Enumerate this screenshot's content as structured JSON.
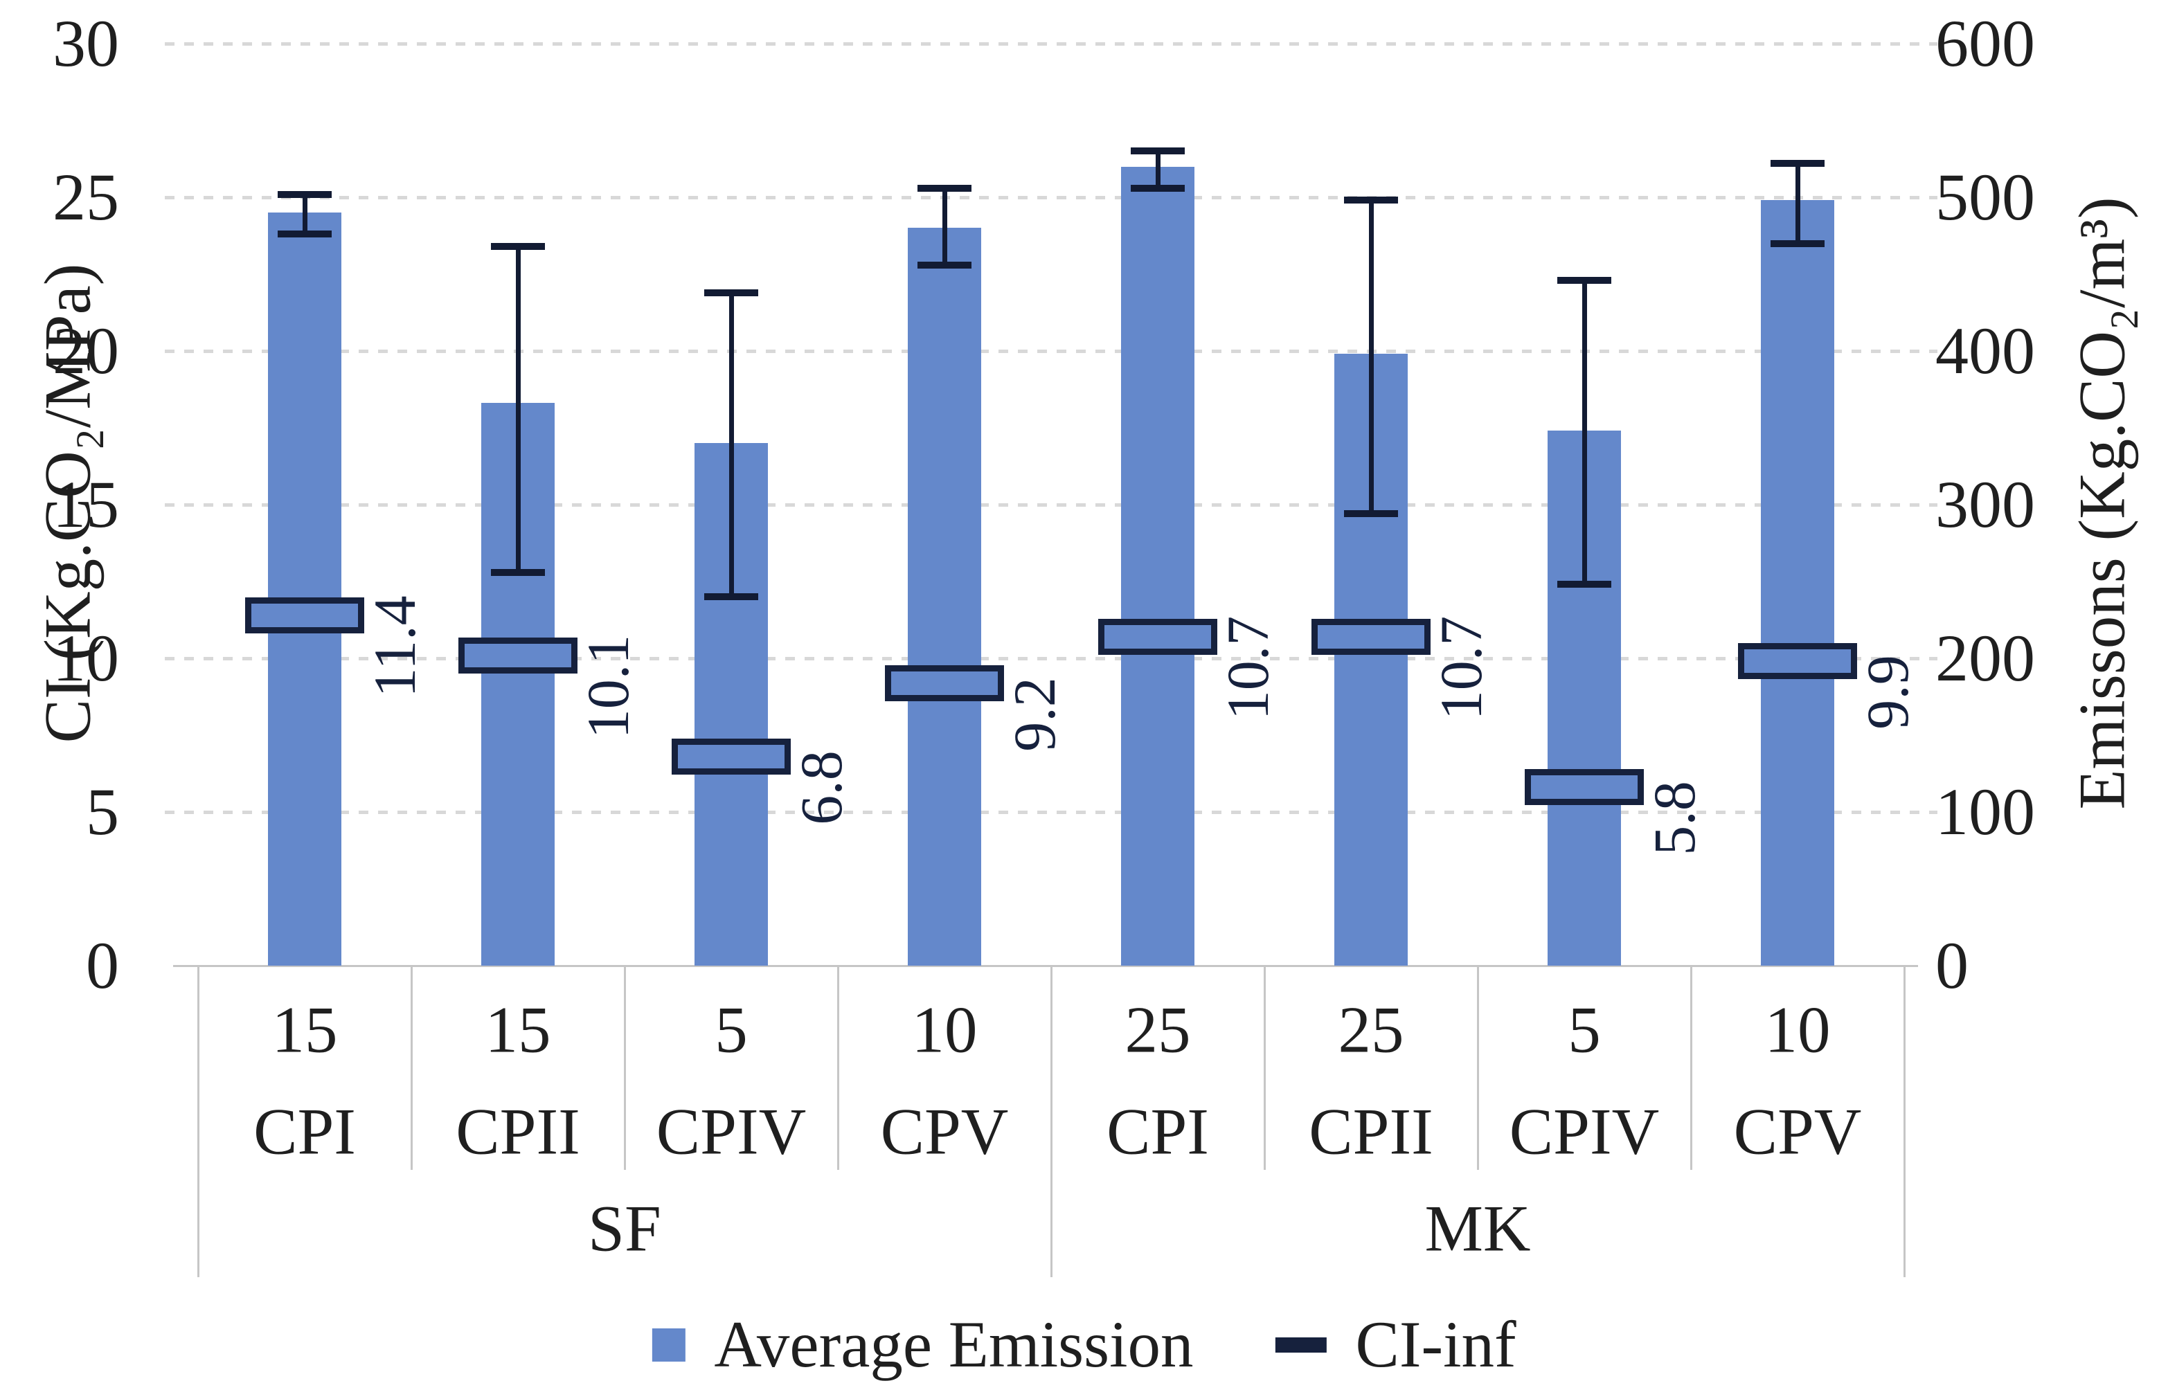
{
  "chart_data": {
    "type": "bar",
    "title": "",
    "left_axis": {
      "label": "CI (Kg.CO₂/MPa)",
      "ticks": [
        "30",
        "25",
        "20",
        "15",
        "10",
        "5",
        "0"
      ],
      "tick_values": [
        30,
        25,
        20,
        15,
        10,
        5,
        0
      ],
      "range": [
        0,
        30
      ]
    },
    "right_axis": {
      "label": "Emissons (Kg.CO₂/m³)",
      "ticks": [
        "600",
        "500",
        "400",
        "300",
        "200",
        "100",
        "0"
      ],
      "tick_values": [
        600,
        500,
        400,
        300,
        200,
        100,
        0
      ],
      "range": [
        0,
        600
      ]
    },
    "grid": "dashed horizontal, on",
    "legend_position": "bottom center",
    "groups": [
      {
        "label": "SF",
        "span": [
          0,
          3
        ]
      },
      {
        "label": "MK",
        "span": [
          4,
          7
        ]
      }
    ],
    "categories": [
      {
        "group": "SF",
        "dosage": "15",
        "cement": "CPI"
      },
      {
        "group": "SF",
        "dosage": "15",
        "cement": "CPII"
      },
      {
        "group": "SF",
        "dosage": "5",
        "cement": "CPIV"
      },
      {
        "group": "SF",
        "dosage": "10",
        "cement": "CPV"
      },
      {
        "group": "MK",
        "dosage": "25",
        "cement": "CPI"
      },
      {
        "group": "MK",
        "dosage": "25",
        "cement": "CPII"
      },
      {
        "group": "MK",
        "dosage": "5",
        "cement": "CPIV"
      },
      {
        "group": "MK",
        "dosage": "10",
        "cement": "CPV"
      }
    ],
    "series": [
      {
        "name": "Average Emission",
        "type": "bar",
        "axis": "right",
        "values_right_axis": [
          490,
          366,
          340,
          480,
          520,
          398,
          348,
          498
        ],
        "values_left_axis_equiv": [
          24.5,
          18.3,
          17.0,
          24.0,
          26.0,
          19.9,
          17.4,
          24.9
        ],
        "error_high_left_axis": [
          25.1,
          23.4,
          21.9,
          25.3,
          26.5,
          24.9,
          22.3,
          26.1
        ],
        "error_low_left_axis": [
          23.8,
          12.8,
          12.0,
          22.8,
          25.3,
          14.7,
          12.4,
          23.5
        ]
      },
      {
        "name": "CI-inf",
        "type": "marker",
        "axis": "left",
        "values": [
          11.4,
          10.1,
          6.8,
          9.2,
          10.7,
          10.7,
          5.8,
          9.9
        ],
        "data_labels": [
          "11.4",
          "10.1",
          "6.8",
          "9.2",
          "10.7",
          "10.7",
          "5.8",
          "9.9"
        ]
      }
    ],
    "colors": {
      "bar_fill": "#6488cb",
      "marker_fill": "#6488cb",
      "marker_border": "#16213d",
      "error_bar": "#121b33",
      "gridline": "#d8d8d8",
      "axis_line": "#c6c6c6",
      "text": "#1f1f1f"
    }
  }
}
